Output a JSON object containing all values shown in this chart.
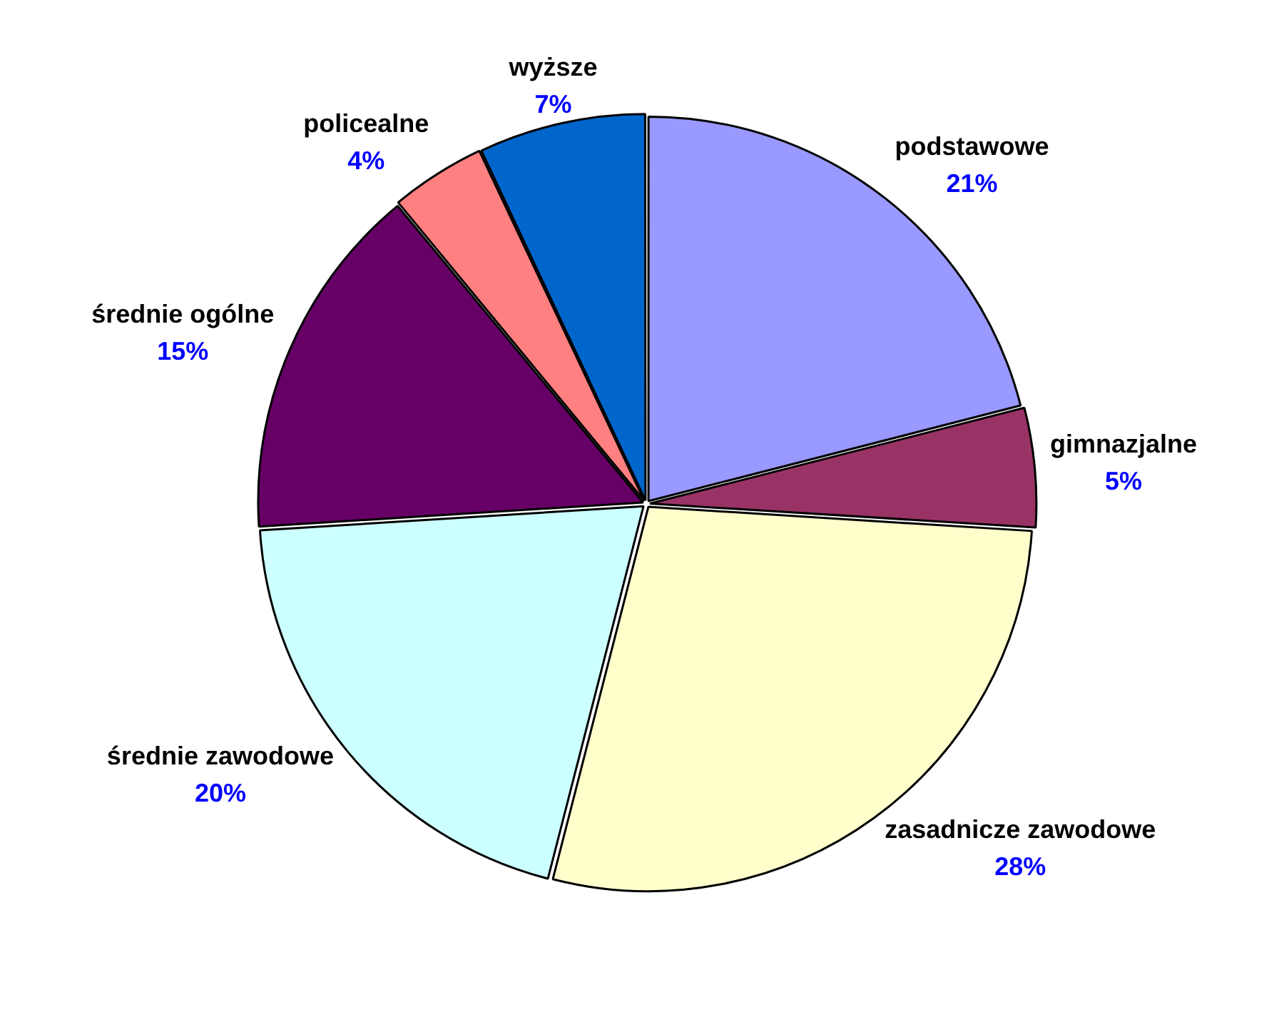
{
  "chart_data": {
    "type": "pie",
    "categories": [
      "podstawowe",
      "gimnazjalne",
      "zasadnicze zawodowe",
      "średnie zawodowe",
      "średnie ogólne",
      "policealne",
      "wyższe"
    ],
    "values": [
      21,
      5,
      28,
      20,
      15,
      4,
      7
    ],
    "value_labels": [
      "21%",
      "5%",
      "28%",
      "20%",
      "15%",
      "4%",
      "7%"
    ],
    "colors": [
      "#9999ff",
      "#993366",
      "#ffffcc",
      "#ccffff",
      "#660066",
      "#ff8080",
      "#0066cc"
    ],
    "legend": false
  }
}
